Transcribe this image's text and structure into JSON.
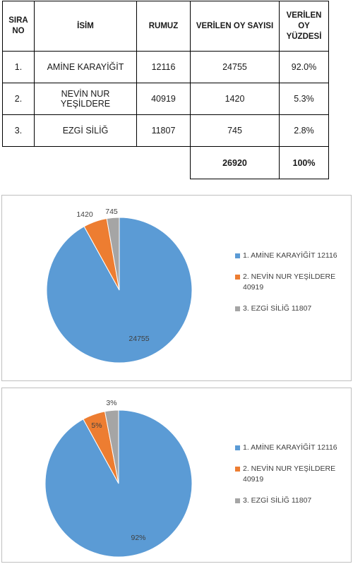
{
  "table": {
    "headers": {
      "sira_no": "SIRA NO",
      "isim": "İSİM",
      "rumuz": "RUMUZ",
      "oy_sayisi": "VERİLEN OY SAYISI",
      "oy_yuzdesi": "VERİLEN OY YÜZDESİ"
    },
    "rows": [
      {
        "sira": "1.",
        "isim": "AMİNE KARAYİĞİT",
        "rumuz": "12116",
        "oy": "24755",
        "yuzde": "92.0%"
      },
      {
        "sira": "2.",
        "isim": "NEVİN NUR YEŞİLDERE",
        "rumuz": "40919",
        "oy": "1420",
        "yuzde": "5.3%"
      },
      {
        "sira": "3.",
        "isim": "EZGİ SİLİĞ",
        "rumuz": "11807",
        "oy": "745",
        "yuzde": "2.8%"
      }
    ],
    "total": {
      "oy": "26920",
      "yuzde": "100%"
    }
  },
  "chart_data": [
    {
      "type": "pie",
      "categories": [
        "1. AMİNE KARAYİĞİT 12116",
        "2. NEVİN NUR YEŞİLDERE 40919",
        "3. EZGİ SİLİĞ 11807"
      ],
      "values": [
        24755,
        1420,
        745
      ],
      "data_labels": [
        "24755",
        "1420",
        "745"
      ],
      "colors": [
        "#5b9bd5",
        "#ed7d31",
        "#a5a5a5"
      ],
      "legend": "right"
    },
    {
      "type": "pie",
      "categories": [
        "1. AMİNE KARAYİĞİT 12116",
        "2. NEVİN NUR YEŞİLDERE 40919",
        "3. EZGİ SİLİĞ 11807"
      ],
      "values": [
        92,
        5,
        3
      ],
      "data_labels": [
        "92%",
        "5%",
        "3%"
      ],
      "colors": [
        "#5b9bd5",
        "#ed7d31",
        "#a5a5a5"
      ],
      "legend": "right"
    }
  ]
}
